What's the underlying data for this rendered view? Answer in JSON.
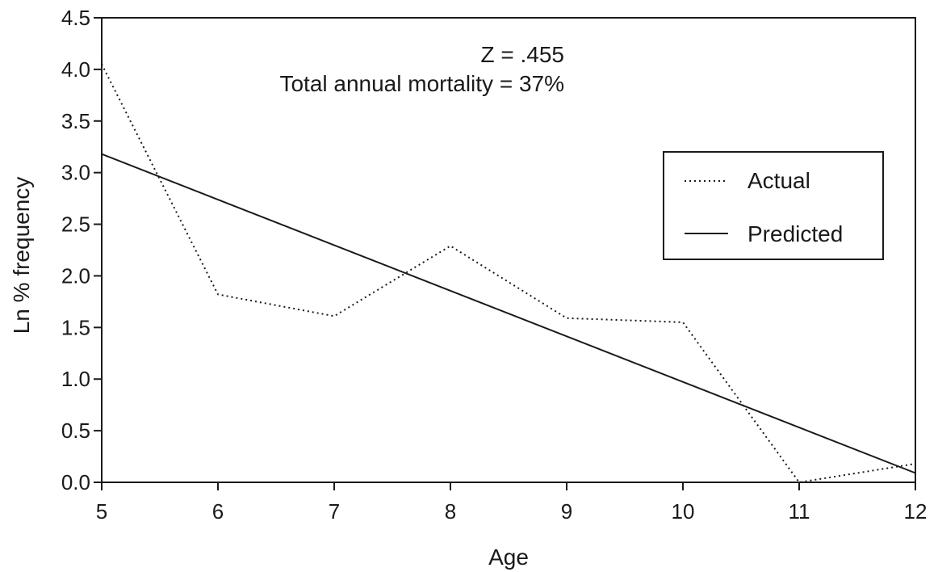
{
  "chart_data": {
    "type": "line",
    "xlabel": "Age",
    "ylabel": "Ln % frequency",
    "xlim": [
      5,
      12
    ],
    "ylim": [
      0,
      4.5
    ],
    "xticks": [
      "5",
      "6",
      "7",
      "8",
      "9",
      "10",
      "11",
      "12"
    ],
    "yticks": [
      "0.0",
      "0.5",
      "1.0",
      "1.5",
      "2.0",
      "2.5",
      "3.0",
      "3.5",
      "4.0",
      "4.5"
    ],
    "grid": false,
    "legend_position": "right",
    "annotations": [
      "Z = .455",
      "Total annual mortality = 37%"
    ],
    "series": [
      {
        "name": "Actual",
        "style": "dotted",
        "x": [
          5,
          6,
          7,
          8,
          9,
          10,
          11,
          12
        ],
        "y": [
          4.05,
          1.82,
          1.61,
          2.29,
          1.59,
          1.55,
          0.0,
          0.18
        ]
      },
      {
        "name": "Predicted",
        "style": "solid",
        "x": [
          5,
          12
        ],
        "y": [
          3.18,
          0.09
        ]
      }
    ],
    "colors": {
      "line": "#1a1a1a",
      "background": "#ffffff"
    }
  }
}
